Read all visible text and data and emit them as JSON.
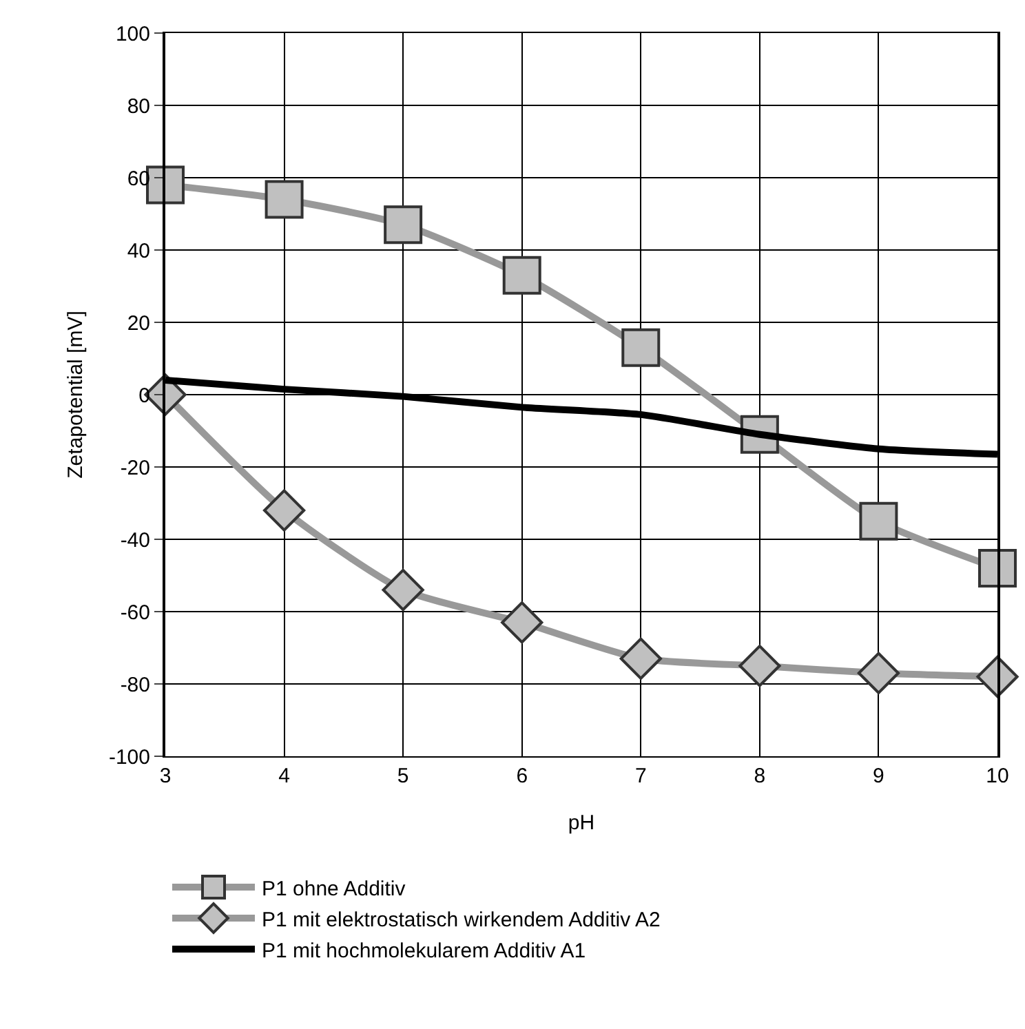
{
  "chart_data": {
    "type": "line",
    "xlabel": "pH",
    "ylabel": "Zetapotential [mV]",
    "x": [
      3,
      4,
      5,
      6,
      7,
      8,
      9,
      10
    ],
    "xlim": [
      3,
      10
    ],
    "xticks": [
      3,
      4,
      5,
      6,
      7,
      8,
      9,
      10
    ],
    "ylim": [
      -100,
      100
    ],
    "yticks": [
      -100,
      -80,
      -60,
      -40,
      -20,
      0,
      20,
      40,
      60,
      80,
      100
    ],
    "grid": true,
    "legend": "bottom",
    "series": [
      {
        "name": "P1 ohne Additiv",
        "color": "#999999",
        "marker": "square",
        "values": [
          58,
          54,
          47,
          33,
          13,
          -11,
          -35,
          -48
        ]
      },
      {
        "name": "P1 mit elektrostatisch wirkendem Additiv A2",
        "color": "#999999",
        "marker": "diamond",
        "values": [
          0,
          -32,
          -54,
          -63,
          -73,
          -75,
          -77,
          -78
        ]
      },
      {
        "name": "P1 mit hochmolekularem Additiv A1",
        "color": "#000000",
        "marker": "none",
        "values": [
          4,
          1.5,
          -0.5,
          -3.5,
          -5.5,
          -11,
          -15,
          -16.5
        ]
      }
    ]
  }
}
